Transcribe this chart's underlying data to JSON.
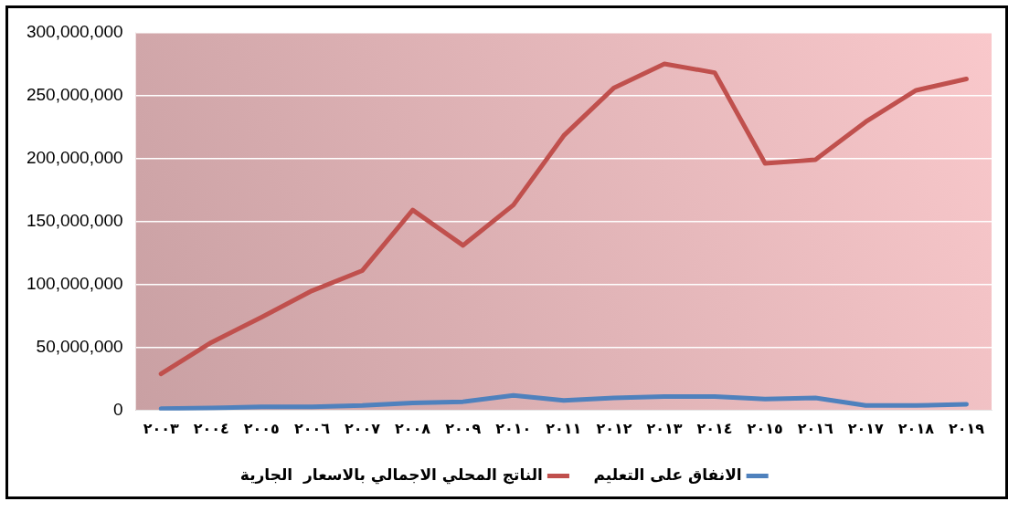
{
  "chart_data": {
    "type": "line",
    "categories": [
      "٢٠٠٣",
      "٢٠٠٤",
      "٢٠٠٥",
      "٢٠٠٦",
      "٢٠٠٧",
      "٢٠٠٨",
      "٢٠٠٩",
      "٢٠١٠",
      "٢٠١١",
      "٢٠١٢",
      "٢٠١٣",
      "٢٠١٤",
      "٢٠١٥",
      "٢٠١٦",
      "٢٠١٧",
      "٢٠١٨",
      "٢٠١٩"
    ],
    "series": [
      {
        "name": "الانفاق على التعليم",
        "color": "#4f81bd",
        "values": [
          1500000,
          2000000,
          3000000,
          3000000,
          4000000,
          6000000,
          7000000,
          12000000,
          8000000,
          10000000,
          11000000,
          11000000,
          9000000,
          10000000,
          4000000,
          4000000,
          5000000
        ]
      },
      {
        "name": "الناتج المحلي الاجمالي بالاسعار  الجارية",
        "color": "#c0504d",
        "values": [
          29000000,
          54000000,
          74000000,
          95000000,
          111000000,
          159000000,
          131000000,
          163000000,
          218000000,
          256000000,
          275000000,
          268000000,
          196000000,
          199000000,
          229000000,
          254000000,
          263000000
        ]
      }
    ],
    "ylim": [
      0,
      300000000
    ],
    "yticks": [
      {
        "value": 0,
        "label": "0"
      },
      {
        "value": 50000000,
        "label": "50,000,000"
      },
      {
        "value": 100000000,
        "label": "100,000,000"
      },
      {
        "value": 150000000,
        "label": "150,000,000"
      },
      {
        "value": 200000000,
        "label": "200,000,000"
      },
      {
        "value": 250000000,
        "label": "250,000,000"
      },
      {
        "value": 300000000,
        "label": "300,000,000"
      }
    ],
    "grid": "y",
    "legend": "bottom",
    "marker": "none",
    "line_style": "solid"
  }
}
